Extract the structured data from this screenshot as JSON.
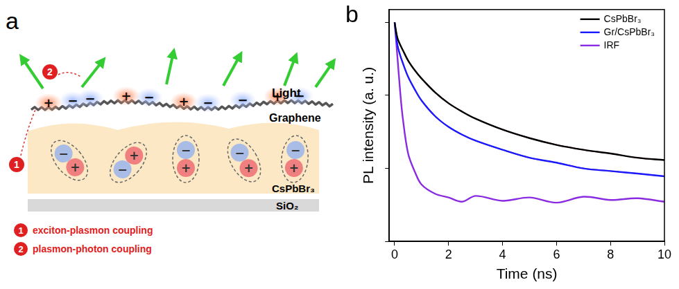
{
  "panel_a": {
    "letter": "a",
    "labels": {
      "light": "Light",
      "graphene": "Graphene",
      "perovskite": "CsPbBr₃",
      "substrate": "SiO₂"
    },
    "graphene_charges": [
      "+",
      "−",
      "−",
      "+",
      "−",
      "+",
      "−",
      "−",
      "+",
      "−"
    ],
    "excitons": [
      [
        "−",
        "+"
      ],
      [
        "+",
        "−"
      ],
      [
        "−",
        "+"
      ],
      [
        "−",
        "+"
      ],
      [
        "−",
        "+"
      ]
    ],
    "couplings": [
      {
        "number": "1",
        "text": "exciton-plasmon coupling"
      },
      {
        "number": "2",
        "text": "plasmon-photon coupling"
      }
    ]
  },
  "chart_data": {
    "type": "line",
    "panel_letter": "b",
    "x_label": "Time (ns)",
    "y_label": "PL intensity (a. u.)",
    "log": "y",
    "grid": false,
    "legend": "top-right",
    "tick_labels": "x",
    "xlim": [
      -0.2,
      10
    ],
    "xticks": [
      0,
      2,
      4,
      6,
      8,
      10
    ],
    "ylim": [
      0.001,
      1.5
    ],
    "yticks": [
      0.001,
      0.01,
      0.1,
      1
    ],
    "x": [
      0,
      0.1,
      0.2,
      0.3,
      0.5,
      0.75,
      1,
      1.5,
      2,
      2.5,
      3,
      4,
      5,
      6,
      7,
      8,
      9,
      10
    ],
    "series": [
      {
        "name": "CsPbBr₃",
        "color": "#000000",
        "values": [
          1,
          0.62,
          0.5,
          0.42,
          0.3,
          0.22,
          0.17,
          0.11,
          0.078,
          0.06,
          0.048,
          0.034,
          0.026,
          0.021,
          0.018,
          0.016,
          0.014,
          0.013
        ]
      },
      {
        "name": "Gr/CsPbBr₃",
        "color": "#1a1aff",
        "values": [
          1,
          0.5,
          0.36,
          0.28,
          0.18,
          0.12,
          0.085,
          0.052,
          0.037,
          0.029,
          0.024,
          0.018,
          0.014,
          0.012,
          0.01,
          0.0092,
          0.0085,
          0.0078
        ]
      },
      {
        "name": "IRF",
        "color": "#8a2be2",
        "values": [
          1,
          0.35,
          0.12,
          0.05,
          0.016,
          0.009,
          0.006,
          0.0045,
          0.004,
          0.0035,
          0.0042,
          0.0036,
          0.004,
          0.0034,
          0.0041,
          0.0037,
          0.0039,
          0.0035
        ]
      },
      {
        "color": "#ff0000",
        "line_style": "solid",
        "values": [
          1,
          0.62,
          0.5,
          0.42,
          0.3,
          0.22,
          0.17,
          0.11,
          0.078,
          0.06,
          0.048,
          0.034,
          0.026,
          0.021,
          0.018,
          0.016,
          0.014,
          0.013
        ]
      },
      {
        "color": "#ff0000",
        "line_style": "solid",
        "values": [
          1,
          0.5,
          0.36,
          0.28,
          0.18,
          0.12,
          0.085,
          0.052,
          0.037,
          0.029,
          0.024,
          0.018,
          0.014,
          0.012,
          0.01,
          0.0092,
          0.0085,
          0.0078
        ]
      }
    ]
  }
}
